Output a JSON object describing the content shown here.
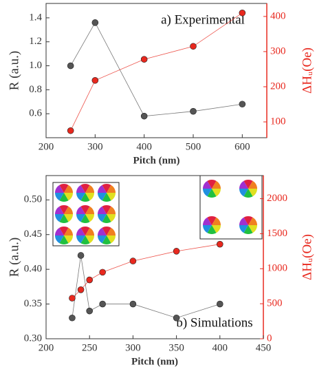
{
  "chart_data": [
    {
      "type": "line",
      "annotation": "a) Experimental",
      "x_label": "Pitch (nm)",
      "y_label": "R (a.u.)",
      "y2_label": "ΔHᵤ(Oe)",
      "x": [
        250,
        300,
        400,
        500,
        600
      ],
      "xlim": [
        200,
        650
      ],
      "xticks": [
        200,
        300,
        400,
        500,
        600
      ],
      "ylim": [
        0.4,
        1.52
      ],
      "yticks": [
        0.6,
        0.8,
        {
          "value": 1.0,
          "label": "1.0"
        },
        1.2,
        1.4
      ],
      "y2lim": [
        55,
        437
      ],
      "y2ticks": [
        100,
        200,
        300,
        400
      ],
      "series": [
        {
          "color": "#555555",
          "values": [
            1.0,
            1.36,
            0.58,
            0.62,
            0.68
          ]
        },
        {
          "color": "#e8281e",
          "axis": "y2",
          "values": [
            75,
            218,
            278,
            315,
            410
          ]
        }
      ]
    },
    {
      "type": "line",
      "annotation": "b) Simulations",
      "x_label": "Pitch (nm)",
      "y_label": "R (a.u.)",
      "y2_label": "ΔHᵤ(Oe)",
      "x": [
        230,
        240,
        250,
        265,
        300,
        350,
        400
      ],
      "xlim": [
        200,
        450
      ],
      "xticks": [
        200,
        250,
        300,
        350,
        400,
        450
      ],
      "ylim": [
        0.3,
        0.535
      ],
      "yticks": [
        {
          "value": 0.3,
          "label": "0.30"
        },
        0.35,
        {
          "value": 0.4,
          "label": "0.40"
        },
        0.45,
        {
          "value": 0.5,
          "label": "0.50"
        }
      ],
      "y2lim": [
        0,
        2330
      ],
      "y2ticks": [
        0,
        500,
        1000,
        1500,
        2000
      ],
      "series": [
        {
          "color": "#555555",
          "values": [
            0.33,
            0.42,
            0.34,
            0.35,
            0.35,
            0.33,
            0.35
          ]
        },
        {
          "color": "#e8281e",
          "axis": "y2",
          "values": [
            580,
            700,
            840,
            950,
            1110,
            1250,
            1350
          ]
        }
      ]
    }
  ]
}
